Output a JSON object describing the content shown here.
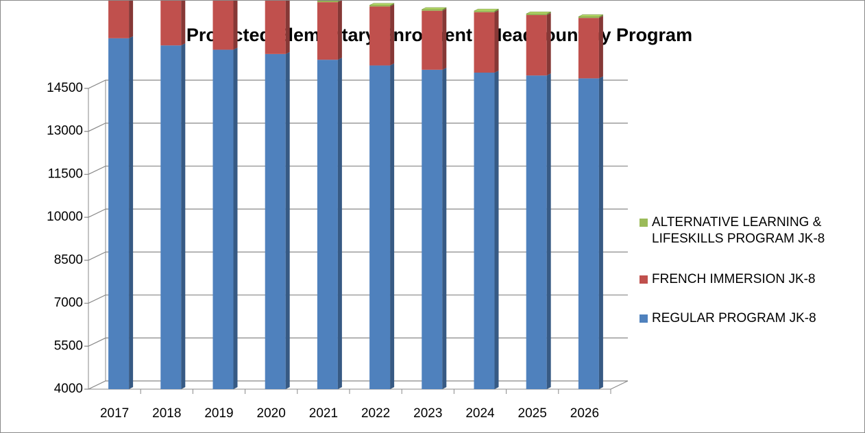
{
  "chart_data": {
    "type": "stacked_bar_3d",
    "title": "Projected Elementary Enrolment - Headcount by Program",
    "categories": [
      "2017",
      "2018",
      "2019",
      "2020",
      "2021",
      "2022",
      "2023",
      "2024",
      "2025",
      "2026"
    ],
    "series": [
      {
        "name": "REGULAR PROGRAM JK-8",
        "color": "#4f81bd",
        "values": [
          12250,
          12000,
          11850,
          11700,
          11500,
          11300,
          11150,
          11050,
          10950,
          10850
        ]
      },
      {
        "name": "FRENCH IMMERSION JK-8",
        "color": "#c0504d",
        "values": [
          1910,
          1960,
          2010,
          2010,
          2010,
          2060,
          2060,
          2110,
          2110,
          2110
        ]
      },
      {
        "name": "ALTERNATIVE LEARNING & LIFESKILLS PROGRAM JK-8",
        "color": "#9bbb59",
        "values": [
          40,
          40,
          40,
          40,
          40,
          40,
          40,
          40,
          40,
          40
        ]
      }
    ],
    "ylim": [
      4000,
      14500
    ],
    "yticks": [
      4000,
      5500,
      7000,
      8500,
      10000,
      11500,
      13000,
      14500
    ],
    "grid": true
  }
}
